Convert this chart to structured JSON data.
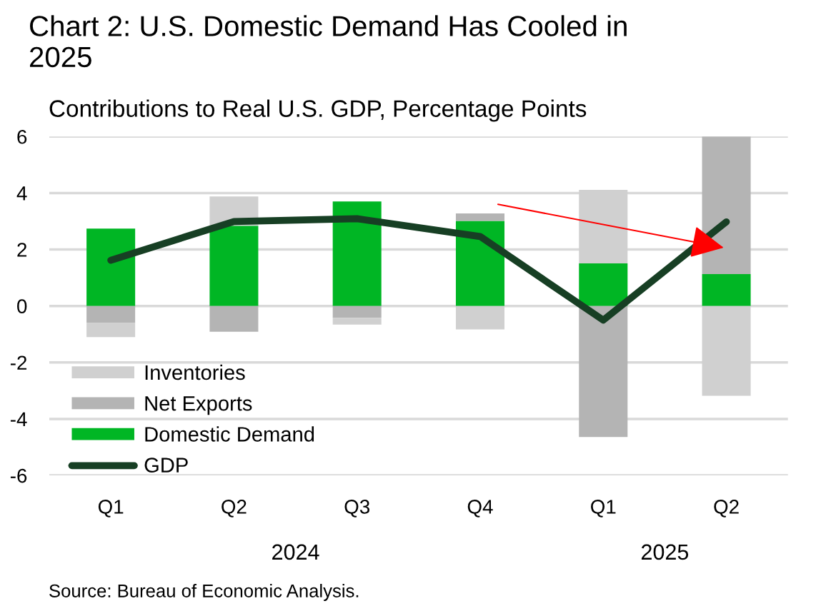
{
  "chart_data": {
    "type": "bar",
    "stacked": true,
    "title": "Chart 2: U.S. Domestic Demand Has Cooled in 2025",
    "subtitle": "Contributions to Real U.S. GDP, Percentage Points",
    "categories": [
      "Q1",
      "Q2",
      "Q3",
      "Q4",
      "Q1",
      "Q2"
    ],
    "series": [
      {
        "name": "Domestic Demand",
        "color": "#00b624",
        "values": [
          2.74,
          2.84,
          3.7,
          3.01,
          1.51,
          1.13
        ]
      },
      {
        "name": "Net Exports",
        "color": "#b4b4b4",
        "values": [
          -0.6,
          -0.91,
          -0.42,
          0.27,
          -4.64,
          4.87
        ]
      },
      {
        "name": "Inventories",
        "color": "#d0d0d0",
        "values": [
          -0.5,
          1.04,
          -0.24,
          -0.83,
          2.6,
          -3.18
        ]
      },
      {
        "name": "GDP",
        "type": "line",
        "color": "#173f24",
        "values": [
          1.62,
          2.99,
          3.09,
          2.46,
          -0.5,
          2.98
        ]
      }
    ],
    "ylim": [
      -6,
      6
    ],
    "yticks": [
      -6,
      -4,
      -2,
      0,
      2,
      4,
      6
    ],
    "grid": "y",
    "legend": "bottom left",
    "annotations": [
      "2024",
      "2025",
      "Source: Bureau of Economic Analysis."
    ]
  }
}
